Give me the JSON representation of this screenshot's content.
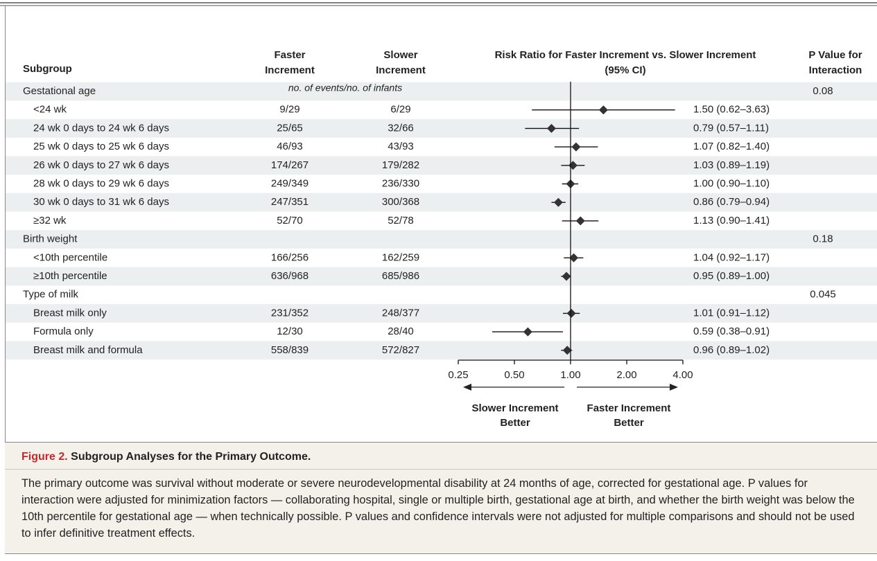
{
  "chart_data": {
    "type": "forest",
    "log_scale": true,
    "xlim": [
      0.25,
      4
    ],
    "xticks": [
      0.25,
      {
        "value": 0.5,
        "label": "0.50"
      },
      {
        "value": 1,
        "label": "1.00"
      },
      {
        "value": 2,
        "label": "2.00"
      },
      {
        "value": 4,
        "label": "4.00"
      }
    ],
    "reference": 1,
    "mark_color": "#333333",
    "headers": {
      "subgroup": "Subgroup",
      "faster": [
        "Faster",
        "Increment"
      ],
      "slower": [
        "Slower",
        "Increment"
      ],
      "count_note": "no. of events/no. of infants",
      "ratio": [
        "Risk Ratio for Faster Increment vs. Slower Increment",
        "(95% CI)"
      ],
      "p": [
        "P Value for",
        "Interaction"
      ]
    },
    "arrow_labels": [
      [
        "Slower Increment",
        "Better"
      ],
      [
        "Faster Increment",
        "Better"
      ]
    ],
    "groups": [
      {
        "name": "Gestational age",
        "p_value": 0.08,
        "subgroups": [
          {
            "name": "<24 wk",
            "faster": "9/29",
            "slower": "6/29",
            "estimate": 1.5,
            "ci": [
              0.62,
              3.63
            ],
            "value_label": "1.50 (0.62–3.63)"
          },
          {
            "name": "24 wk 0 days to 24 wk 6 days",
            "faster": "25/65",
            "slower": "32/66",
            "estimate": 0.79,
            "ci": [
              0.57,
              1.11
            ],
            "value_label": "0.79 (0.57–1.11)"
          },
          {
            "name": "25 wk 0 days to 25 wk 6 days",
            "faster": "46/93",
            "slower": "43/93",
            "estimate": 1.07,
            "ci": [
              0.82,
              1.4
            ],
            "value_label": "1.07 (0.82–1.40)"
          },
          {
            "name": "26 wk 0 days to 27 wk 6 days",
            "faster": "174/267",
            "slower": "179/282",
            "estimate": 1.03,
            "ci": [
              0.89,
              1.19
            ],
            "value_label": "1.03 (0.89–1.19)"
          },
          {
            "name": "28 wk 0 days to 29 wk 6 days",
            "faster": "249/349",
            "slower": "236/330",
            "estimate": 1.0,
            "ci": [
              0.9,
              1.1
            ],
            "value_label": "1.00 (0.90–1.10)"
          },
          {
            "name": "30 wk 0 days to 31 wk 6 days",
            "faster": "247/351",
            "slower": "300/368",
            "estimate": 0.86,
            "ci": [
              0.79,
              0.94
            ],
            "value_label": "0.86 (0.79–0.94)"
          },
          {
            "name": "≥32 wk",
            "faster": "52/70",
            "slower": "52/78",
            "estimate": 1.13,
            "ci": [
              0.9,
              1.41
            ],
            "value_label": "1.13 (0.90–1.41)"
          }
        ]
      },
      {
        "name": "Birth weight",
        "p_value": 0.18,
        "subgroups": [
          {
            "name": "<10th percentile",
            "faster": "166/256",
            "slower": "162/259",
            "estimate": 1.04,
            "ci": [
              0.92,
              1.17
            ],
            "value_label": "1.04 (0.92–1.17)"
          },
          {
            "name": "≥10th percentile",
            "faster": "636/968",
            "slower": "685/986",
            "estimate": 0.95,
            "ci": [
              0.89,
              1.0
            ],
            "value_label": "0.95 (0.89–1.00)"
          }
        ]
      },
      {
        "name": "Type of milk",
        "p_value": 0.045,
        "subgroups": [
          {
            "name": "Breast milk only",
            "faster": "231/352",
            "slower": "248/377",
            "estimate": 1.01,
            "ci": [
              0.91,
              1.12
            ],
            "value_label": "1.01 (0.91–1.12)"
          },
          {
            "name": "Formula only",
            "faster": "12/30",
            "slower": "28/40",
            "estimate": 0.59,
            "ci": [
              0.38,
              0.91
            ],
            "value_label": "0.59 (0.38–0.91)"
          },
          {
            "name": "Breast milk and formula",
            "faster": "558/839",
            "slower": "572/827",
            "estimate": 0.96,
            "ci": [
              0.89,
              1.02
            ],
            "value_label": "0.96 (0.89–1.02)"
          }
        ]
      }
    ],
    "caption_label": "Figure 2.",
    "caption_title": "Subgroup Analyses for the Primary Outcome.",
    "caption_text": "The primary outcome was survival without moderate or severe neurodevelopmental disability at 24 months of age, corrected for gestational age. P values for interaction were adjusted for minimization factors — collaborating hospital, single or multiple birth, gestational age at birth, and whether the birth weight was below the 10th percentile for gestational age — when technically possible. P values and confidence intervals were not adjusted for multiple comparisons and should not be used to infer definitive treatment effects."
  }
}
